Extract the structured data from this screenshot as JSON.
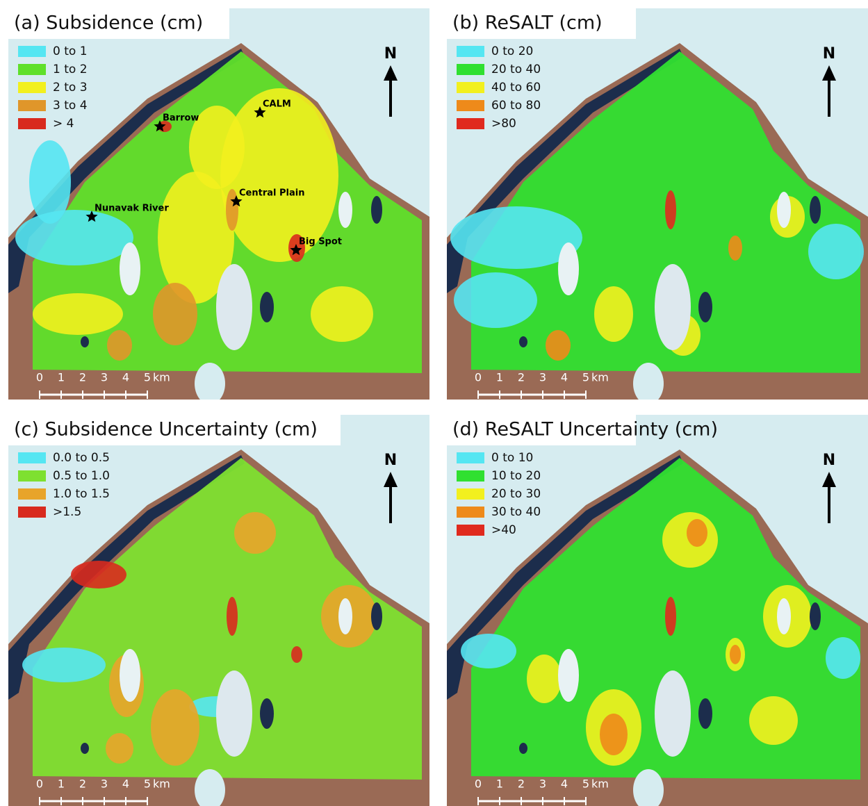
{
  "panels": [
    {
      "title": "(a) Subsidence (cm)",
      "legend": [
        {
          "label": "0 to 1",
          "color": "#55e6f2"
        },
        {
          "label": "1 to 2",
          "color": "#5fe02a"
        },
        {
          "label": "2 to 3",
          "color": "#f2f01e"
        },
        {
          "label": "3 to 4",
          "color": "#e0962a"
        },
        {
          "label": "> 4",
          "color": "#d82a1e"
        }
      ],
      "places": [
        {
          "label": "Barrow"
        },
        {
          "label": "CALM"
        },
        {
          "label": "Central Plain"
        },
        {
          "label": "Nunavak River"
        },
        {
          "label": "Big Spot"
        }
      ],
      "north": "N",
      "scale": {
        "ticks": [
          "0",
          "1",
          "2",
          "3",
          "4",
          "5"
        ],
        "unit": "km"
      }
    },
    {
      "title": "(b) ReSALT (cm)",
      "legend": [
        {
          "label": "0 to 20",
          "color": "#55e6f2"
        },
        {
          "label": "20 to 40",
          "color": "#30e030"
        },
        {
          "label": "40 to 60",
          "color": "#f2f01e"
        },
        {
          "label": "60 to 80",
          "color": "#ee8a1a"
        },
        {
          "label": ">80",
          "color": "#e02a1e"
        }
      ],
      "places": [],
      "north": "N",
      "scale": {
        "ticks": [
          "0",
          "1",
          "2",
          "3",
          "4",
          "5"
        ],
        "unit": "km"
      }
    },
    {
      "title": "(c) Subsidence Uncertainty (cm)",
      "legend": [
        {
          "label": "0.0 to 0.5",
          "color": "#55e6f2"
        },
        {
          "label": "0.5 to 1.0",
          "color": "#7ee030"
        },
        {
          "label": "1.0 to 1.5",
          "color": "#e8a42a"
        },
        {
          "label": ">1.5",
          "color": "#d82a1e"
        }
      ],
      "places": [],
      "north": "N",
      "scale": {
        "ticks": [
          "0",
          "1",
          "2",
          "3",
          "4",
          "5"
        ],
        "unit": "km"
      }
    },
    {
      "title": "(d) ReSALT Uncertainty (cm)",
      "legend": [
        {
          "label": "0 to 10",
          "color": "#55e6f2"
        },
        {
          "label": "10 to 20",
          "color": "#30e030"
        },
        {
          "label": "20 to 30",
          "color": "#f2f01e"
        },
        {
          "label": "30 to 40",
          "color": "#ee8a1a"
        },
        {
          "label": ">40",
          "color": "#e02a1e"
        }
      ],
      "places": [],
      "north": "N",
      "scale": {
        "ticks": [
          "0",
          "1",
          "2",
          "3",
          "4",
          "5"
        ],
        "unit": "km"
      }
    }
  ]
}
